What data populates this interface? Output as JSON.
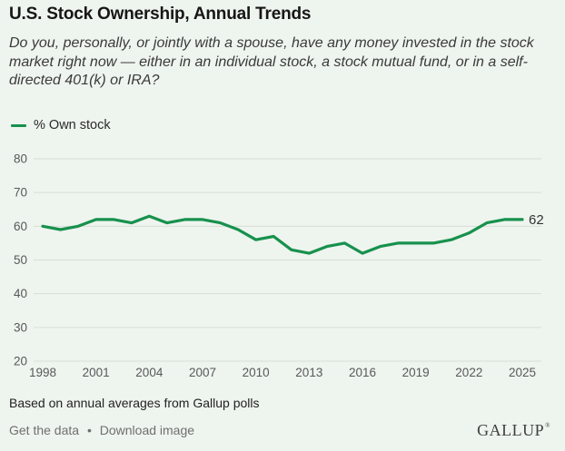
{
  "header": {
    "title": "U.S. Stock Ownership, Annual Trends",
    "subtitle": "Do you, personally, or jointly with a spouse, have any money invested in the stock market right now — either in an individual stock, a stock mutual fund, or in a self-directed 401(k) or IRA?"
  },
  "legend": {
    "label": "% Own stock"
  },
  "colors": {
    "background": "#eef4ee",
    "line": "#17914d",
    "grid": "#d9ddd8",
    "tick_text": "#58595b",
    "end_label": "#333333"
  },
  "chart_data": {
    "type": "line",
    "title": "U.S. Stock Ownership, Annual Trends",
    "xlabel": "",
    "ylabel": "% Own stock",
    "ylim": [
      20,
      80
    ],
    "yticks": [
      80,
      70,
      60,
      50,
      40,
      30,
      20
    ],
    "xticks": [
      1998,
      2001,
      2004,
      2007,
      2010,
      2013,
      2016,
      2019,
      2022,
      2025
    ],
    "grid": true,
    "legend_position": "top-left",
    "end_label": "62",
    "series": [
      {
        "name": "% Own stock",
        "x": [
          1998,
          1999,
          2000,
          2001,
          2002,
          2003,
          2004,
          2005,
          2006,
          2007,
          2008,
          2009,
          2010,
          2011,
          2012,
          2013,
          2014,
          2015,
          2016,
          2017,
          2018,
          2019,
          2020,
          2021,
          2022,
          2023,
          2024,
          2025
        ],
        "values": [
          60,
          59,
          60,
          62,
          62,
          61,
          63,
          61,
          62,
          62,
          61,
          59,
          56,
          57,
          53,
          52,
          54,
          55,
          52,
          54,
          55,
          55,
          55,
          56,
          58,
          61,
          62,
          62
        ]
      }
    ]
  },
  "source": "Based on annual averages from Gallup polls",
  "footer": {
    "links": [
      {
        "label": "Get the data"
      },
      {
        "label": "Download image"
      }
    ],
    "separator": "•",
    "logo": "GALLUP",
    "logo_mark": "®"
  }
}
